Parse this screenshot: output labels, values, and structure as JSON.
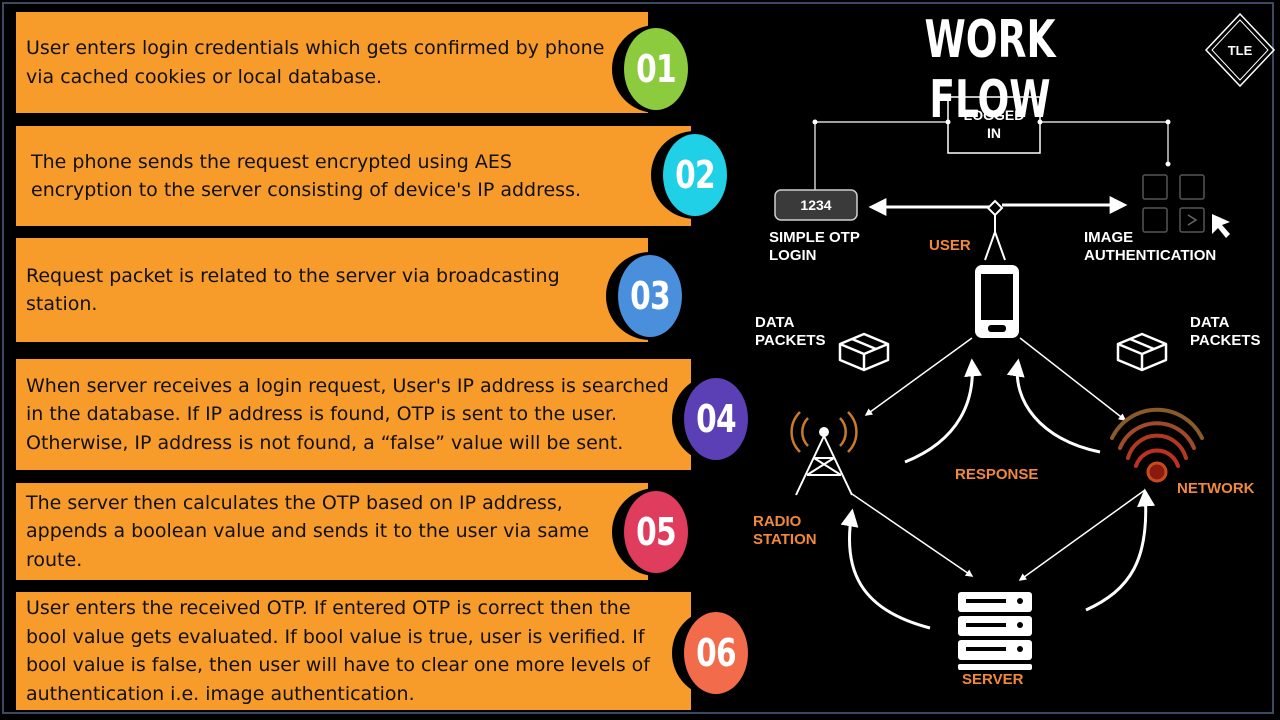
{
  "title": "WORK FLOW",
  "logo_text": "TLE",
  "steps": [
    {
      "num": "01",
      "text": "User enters login credentials which gets confirmed by phone\nvia cached cookies or local database.",
      "color": "#8ccb3e"
    },
    {
      "num": "02",
      "text": "The phone sends the request encrypted using AES\nencryption to the server consisting of device's IP address.",
      "color": "#1fd0e6"
    },
    {
      "num": "03",
      "text": "Request packet is related to the server via broadcasting\nstation.",
      "color": "#4a8fdc"
    },
    {
      "num": "04",
      "text": "When server receives a login request, User's IP address is searched\n in the database. If IP address is found, OTP is sent to the user.\nOtherwise, IP address is not found, a “false” value will be sent.",
      "color": "#5b3fb4"
    },
    {
      "num": "05",
      "text": "The server then calculates the OTP based on IP address,\nappends a boolean value and sends it to the user via same\nroute.",
      "color": "#e03c5e"
    },
    {
      "num": "06",
      "text": "User enters the received OTP. If entered OTP is correct then the\nbool value gets evaluated. If bool value is true, user is verified. If\nbool value is false, then user will have to clear one more levels of\nauthentication i.e. image authentication.",
      "color": "#f26b4a"
    }
  ],
  "diagram": {
    "logged_in": "LOGGED\nIN",
    "otp_code": "1234",
    "simple_otp_login": "SIMPLE OTP\n LOGIN",
    "user": "USER",
    "image_authentication": "IMAGE\nAUTHENTICATION",
    "data_packets_left": "DATA\nPACKETS",
    "data_packets_right": "DATA\nPACKETS",
    "response": "RESPONSE",
    "network": "NETWORK",
    "radio_station": "RADIO\nSTATION",
    "server": "SERVER"
  },
  "colors": {
    "step_bg": "#f79b2a",
    "accent_label": "#f0883e",
    "background": "#000000"
  }
}
